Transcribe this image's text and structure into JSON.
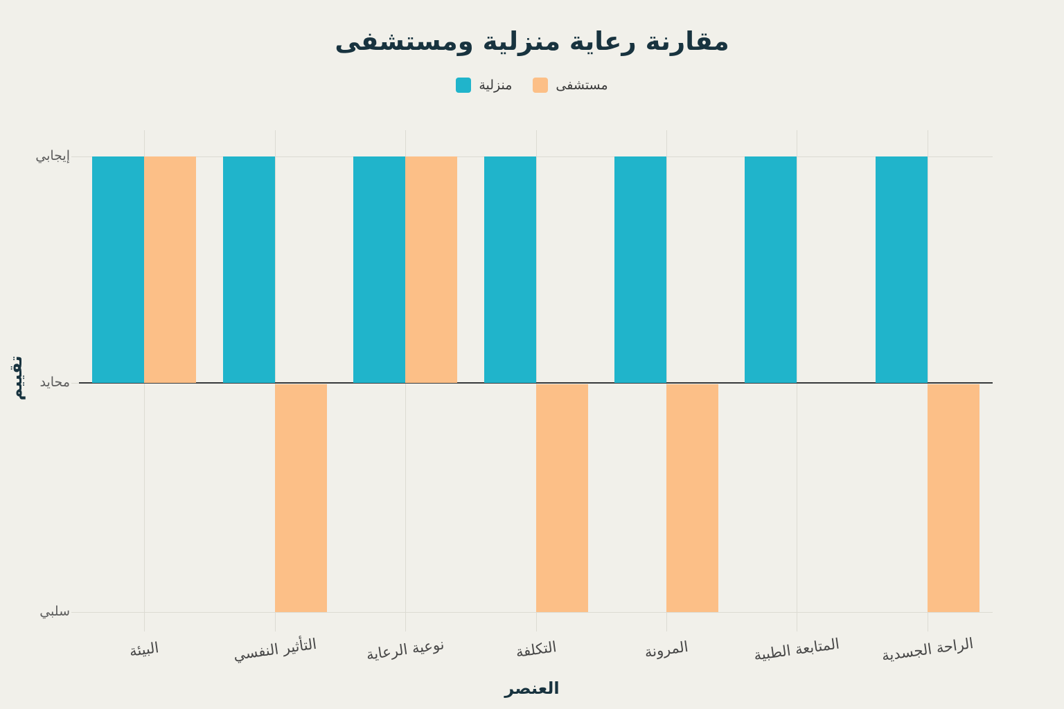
{
  "chart_data": {
    "type": "bar",
    "title": "مقارنة رعاية منزلية ومستشفى",
    "xlabel": "العنصر",
    "ylabel": "تقييم",
    "categories": [
      "البيئة",
      "التأثير النفسي",
      "نوعية الرعاية",
      "التكلفة",
      "المرونة",
      "المتابعة الطبية",
      "الراحة الجسدية"
    ],
    "series": [
      {
        "name": "منزلية",
        "color": "#20b4cb",
        "values": [
          1,
          1,
          1,
          1,
          1,
          1,
          1
        ]
      },
      {
        "name": "مستشفى",
        "color": "#fcbf87",
        "values": [
          1,
          -1,
          1,
          -1,
          -1,
          0,
          -1
        ]
      }
    ],
    "yticks": [
      {
        "value": 1,
        "label": "إيجابي"
      },
      {
        "value": 0,
        "label": "محايد"
      },
      {
        "value": -1,
        "label": "سلبي"
      }
    ],
    "ylim": [
      -1,
      1
    ],
    "legend_position": "top",
    "grid": true
  },
  "colors": {
    "background": "#f1f0ea",
    "gridline": "#dcdbd3",
    "zero_line": "#36393b",
    "title": "#18333f",
    "axis_name": "#18333f",
    "x_tick_label": "#474747",
    "y_tick_label": "#5c5c5c"
  }
}
